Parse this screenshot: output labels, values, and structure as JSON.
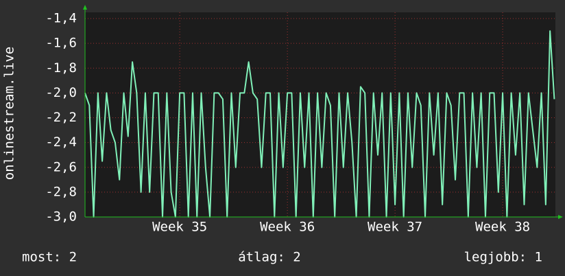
{
  "chart_data": {
    "type": "line",
    "y_label": "onlinestream.live",
    "x": [
      34.12,
      34.16,
      34.2,
      34.24,
      34.28,
      34.32,
      34.36,
      34.4,
      34.44,
      34.48,
      34.52,
      34.56,
      34.6,
      34.64,
      34.68,
      34.72,
      34.76,
      34.8,
      34.84,
      34.88,
      34.92,
      34.96,
      35.0,
      35.04,
      35.08,
      35.12,
      35.16,
      35.2,
      35.24,
      35.28,
      35.32,
      35.36,
      35.4,
      35.44,
      35.48,
      35.52,
      35.56,
      35.6,
      35.64,
      35.68,
      35.72,
      35.76,
      35.8,
      35.84,
      35.88,
      35.92,
      35.96,
      36.0,
      36.04,
      36.08,
      36.12,
      36.16,
      36.2,
      36.24,
      36.28,
      36.32,
      36.36,
      36.4,
      36.44,
      36.48,
      36.52,
      36.56,
      36.6,
      36.64,
      36.68,
      36.72,
      36.76,
      36.8,
      36.84,
      36.88,
      36.92,
      36.96,
      37.0,
      37.04,
      37.08,
      37.12,
      37.16,
      37.2,
      37.24,
      37.28,
      37.32,
      37.36,
      37.4,
      37.44,
      37.48,
      37.52,
      37.56,
      37.6,
      37.64,
      37.68,
      37.72,
      37.76,
      37.8,
      37.84,
      37.88,
      37.92,
      37.96,
      38.0,
      38.04,
      38.08,
      38.12,
      38.16,
      38.2,
      38.24,
      38.28,
      38.32,
      38.36,
      38.4,
      38.44,
      38.48
    ],
    "series": [
      {
        "name": "onlinestream.live",
        "color": "#80f0b8",
        "values": [
          -2.0,
          -2.1,
          -3.0,
          -2.0,
          -2.55,
          -2.0,
          -2.3,
          -2.4,
          -2.7,
          -2.0,
          -2.35,
          -1.75,
          -2.0,
          -2.8,
          -2.0,
          -2.8,
          -2.0,
          -2.0,
          -3.0,
          -2.0,
          -2.8,
          -3.0,
          -2.0,
          -2.0,
          -3.0,
          -2.0,
          -3.0,
          -2.0,
          -2.6,
          -3.0,
          -2.0,
          -2.0,
          -2.05,
          -3.0,
          -2.0,
          -2.6,
          -2.0,
          -2.0,
          -1.75,
          -2.0,
          -2.05,
          -2.6,
          -2.0,
          -2.0,
          -3.0,
          -2.0,
          -2.6,
          -2.0,
          -2.0,
          -3.0,
          -2.0,
          -2.6,
          -2.0,
          -3.0,
          -2.0,
          -2.6,
          -2.0,
          -2.1,
          -3.0,
          -2.0,
          -2.6,
          -2.0,
          -2.4,
          -3.0,
          -1.95,
          -2.0,
          -3.0,
          -2.0,
          -2.5,
          -2.0,
          -3.0,
          -2.0,
          -2.9,
          -2.0,
          -3.0,
          -2.0,
          -2.6,
          -2.0,
          -2.1,
          -3.0,
          -2.0,
          -2.5,
          -2.0,
          -2.9,
          -2.0,
          -2.1,
          -2.7,
          -2.0,
          -2.0,
          -3.0,
          -2.0,
          -2.6,
          -2.0,
          -3.0,
          -2.0,
          -2.0,
          -2.8,
          -2.0,
          -3.0,
          -2.0,
          -2.5,
          -2.0,
          -2.9,
          -2.0,
          -2.3,
          -2.6,
          -2.0,
          -2.9,
          -1.5,
          -2.05
        ]
      }
    ],
    "xlim": [
      34.12,
      38.49
    ],
    "xticks": [
      {
        "value": 35,
        "label": "Week 35"
      },
      {
        "value": 36,
        "label": "Week 36"
      },
      {
        "value": 37,
        "label": "Week 37"
      },
      {
        "value": 38,
        "label": "Week 38"
      }
    ],
    "ylim": [
      -3.0,
      -1.35
    ],
    "yticks": [
      {
        "value": -3.0,
        "label": "-3,0"
      },
      {
        "value": -2.8,
        "label": "-2,8"
      },
      {
        "value": -2.6,
        "label": "-2,6"
      },
      {
        "value": -2.4,
        "label": "-2,4"
      },
      {
        "value": -2.2,
        "label": "-2,2"
      },
      {
        "value": -2.0,
        "label": "-2,0"
      },
      {
        "value": -1.8,
        "label": "-1,8"
      },
      {
        "value": -1.6,
        "label": "-1,6"
      },
      {
        "value": -1.4,
        "label": "-1,4"
      }
    ],
    "grid": true,
    "footer": [
      "most: 2",
      "átlag: 2",
      "legjobb: 1"
    ]
  }
}
